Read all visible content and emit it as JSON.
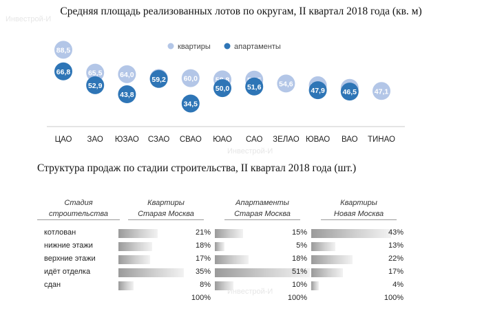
{
  "page_title_1": "Средняя площадь реализованных лотов по округам, II квартал 2018 года (кв. м)",
  "page_title_2": "Структура продаж по стадии строительства, II квартал 2018 года (шт.)",
  "watermark": "Инвестрой-И",
  "colors": {
    "apartments_flat": "#b3c6e7",
    "apartments_serviced": "#2e75b6",
    "bar_gray": "#a6a6a6"
  },
  "chart_data": [
    {
      "type": "scatter",
      "title": "Средняя площадь реализованных лотов по округам, II квартал 2018 года (кв. м)",
      "categories": [
        "ЦАО",
        "ЗАО",
        "ЮЗАО",
        "СЗАО",
        "СВАО",
        "ЮАО",
        "САО",
        "ЗЕЛАО",
        "ЮВАО",
        "ВАО",
        "ТИНАО"
      ],
      "series": [
        {
          "name": "квартиры",
          "values": [
            88.5,
            65.5,
            64.0,
            60.2,
            60.0,
            58.8,
            58.5,
            54.6,
            52.9,
            50.2,
            47.1
          ],
          "labels": [
            "88,5",
            "65,5",
            "64,0",
            "60,2",
            "60,0",
            "58,8",
            "58,5",
            "54,6",
            "52,9",
            "50,2",
            "47,1"
          ]
        },
        {
          "name": "апартаменты",
          "values": [
            66.8,
            52.9,
            43.8,
            59.2,
            34.5,
            50.0,
            51.6,
            null,
            47.9,
            46.5,
            null
          ],
          "labels": [
            "66,8",
            "52,9",
            "43,8",
            "59,2",
            "34,5",
            "50,0",
            "51,6",
            "",
            "47,9",
            "46,5",
            ""
          ]
        }
      ],
      "legend": "top-right",
      "ylim": [
        30,
        95
      ]
    },
    {
      "type": "bar",
      "title": "Структура продаж по стадии строительства, II квартал 2018 года (шт.)",
      "header_stage": [
        "Стадия",
        "строительства"
      ],
      "categories": [
        "котлован",
        "нижние этажи",
        "верхние этажи",
        "идёт отделка",
        "сдан"
      ],
      "series": [
        {
          "name": [
            "Квартиры",
            "Старая Москва"
          ],
          "values": [
            21,
            18,
            17,
            35,
            8
          ],
          "labels": [
            "21%",
            "18%",
            "17%",
            "35%",
            "8%"
          ],
          "total": "100%"
        },
        {
          "name": [
            "Апартаменты",
            "Старая Москва"
          ],
          "values": [
            15,
            5,
            18,
            51,
            10
          ],
          "labels": [
            "15%",
            "5%",
            "18%",
            "51%",
            "10%"
          ],
          "total": "100%"
        },
        {
          "name": [
            "Квартиры",
            "Новая Москва"
          ],
          "values": [
            43,
            13,
            22,
            17,
            4
          ],
          "labels": [
            "43%",
            "13%",
            "22%",
            "17%",
            "4%"
          ],
          "total": "100%"
        }
      ]
    }
  ]
}
